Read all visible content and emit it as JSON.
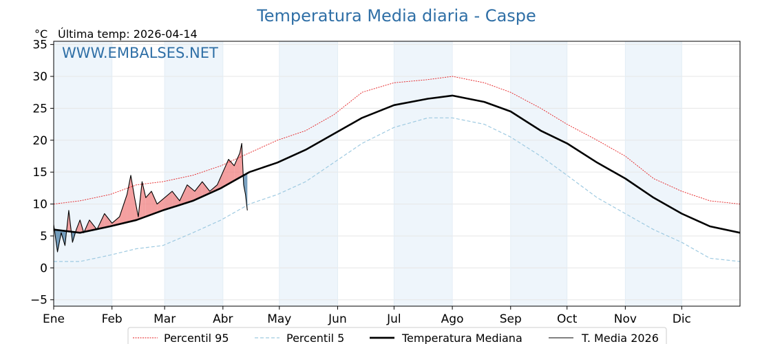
{
  "chart_data": {
    "type": "line",
    "title": "Temperatura Media diaria - Caspe",
    "unit_label": "°C",
    "last_temp_label": "Última temp: 2026-04-14",
    "watermark": "WWW.EMBALSES.NET",
    "ylim": [
      -6,
      35.5
    ],
    "xlim": [
      1,
      366
    ],
    "y_ticks": [
      -5,
      0,
      5,
      10,
      15,
      20,
      25,
      30,
      35
    ],
    "y_tick_labels": [
      "−5",
      "0",
      "5",
      "10",
      "15",
      "20",
      "25",
      "30",
      "35"
    ],
    "months": [
      "Ene",
      "Feb",
      "Mar",
      "Abr",
      "May",
      "Jun",
      "Jul",
      "Ago",
      "Sep",
      "Oct",
      "Nov",
      "Dic"
    ],
    "month_start_days": [
      1,
      32,
      60,
      91,
      121,
      152,
      182,
      213,
      244,
      274,
      305,
      335
    ],
    "grid": true,
    "legend_position": "bottom-center",
    "colors": {
      "p95": "#e41a1c",
      "p5": "#9ecae1",
      "median": "#000000",
      "current": "#000000",
      "above_fill": "#f08080",
      "below_fill": "#4a7fa8",
      "band_shade": "#eef5fb",
      "title": "#2f6fa6"
    },
    "series": [
      {
        "name": "Percentil 95",
        "key": "p95",
        "points": [
          [
            1,
            10.0
          ],
          [
            15,
            10.5
          ],
          [
            31,
            11.5
          ],
          [
            45,
            13.0
          ],
          [
            59,
            13.5
          ],
          [
            75,
            14.5
          ],
          [
            90,
            16.0
          ],
          [
            105,
            18.0
          ],
          [
            120,
            20.0
          ],
          [
            135,
            21.5
          ],
          [
            150,
            24.0
          ],
          [
            165,
            27.5
          ],
          [
            182,
            29.0
          ],
          [
            200,
            29.5
          ],
          [
            213,
            30.0
          ],
          [
            230,
            29.0
          ],
          [
            244,
            27.5
          ],
          [
            260,
            25.0
          ],
          [
            274,
            22.5
          ],
          [
            290,
            20.0
          ],
          [
            305,
            17.5
          ],
          [
            320,
            14.0
          ],
          [
            335,
            12.0
          ],
          [
            350,
            10.5
          ],
          [
            366,
            10.0
          ]
        ]
      },
      {
        "name": "Percentil 5",
        "key": "p5",
        "points": [
          [
            1,
            1.0
          ],
          [
            15,
            1.0
          ],
          [
            31,
            2.0
          ],
          [
            45,
            3.0
          ],
          [
            59,
            3.5
          ],
          [
            75,
            5.5
          ],
          [
            90,
            7.5
          ],
          [
            105,
            10.0
          ],
          [
            120,
            11.5
          ],
          [
            135,
            13.5
          ],
          [
            150,
            16.5
          ],
          [
            165,
            19.5
          ],
          [
            182,
            22.0
          ],
          [
            200,
            23.5
          ],
          [
            213,
            23.5
          ],
          [
            230,
            22.5
          ],
          [
            244,
            20.5
          ],
          [
            260,
            17.5
          ],
          [
            274,
            14.5
          ],
          [
            290,
            11.0
          ],
          [
            305,
            8.5
          ],
          [
            320,
            6.0
          ],
          [
            335,
            4.0
          ],
          [
            350,
            1.5
          ],
          [
            366,
            1.0
          ]
        ]
      },
      {
        "name": "Temperatura Mediana",
        "key": "median",
        "points": [
          [
            1,
            6.0
          ],
          [
            15,
            5.5
          ],
          [
            31,
            6.5
          ],
          [
            45,
            7.5
          ],
          [
            59,
            9.0
          ],
          [
            75,
            10.5
          ],
          [
            90,
            12.5
          ],
          [
            105,
            15.0
          ],
          [
            120,
            16.5
          ],
          [
            135,
            18.5
          ],
          [
            150,
            21.0
          ],
          [
            165,
            23.5
          ],
          [
            182,
            25.5
          ],
          [
            200,
            26.5
          ],
          [
            213,
            27.0
          ],
          [
            230,
            26.0
          ],
          [
            244,
            24.5
          ],
          [
            260,
            21.5
          ],
          [
            274,
            19.5
          ],
          [
            290,
            16.5
          ],
          [
            305,
            14.0
          ],
          [
            320,
            11.0
          ],
          [
            335,
            8.5
          ],
          [
            350,
            6.5
          ],
          [
            366,
            5.5
          ]
        ]
      },
      {
        "name": "T. Media 2026",
        "key": "current",
        "points": [
          [
            1,
            6.8
          ],
          [
            3,
            2.5
          ],
          [
            5,
            5.5
          ],
          [
            7,
            3.5
          ],
          [
            9,
            9.0
          ],
          [
            11,
            4.0
          ],
          [
            13,
            6.0
          ],
          [
            15,
            7.5
          ],
          [
            17,
            5.5
          ],
          [
            20,
            7.5
          ],
          [
            24,
            6.0
          ],
          [
            28,
            8.5
          ],
          [
            32,
            7.0
          ],
          [
            36,
            8.0
          ],
          [
            40,
            11.5
          ],
          [
            42,
            14.5
          ],
          [
            44,
            11.0
          ],
          [
            46,
            8.0
          ],
          [
            48,
            13.5
          ],
          [
            50,
            11.0
          ],
          [
            53,
            12.0
          ],
          [
            56,
            10.0
          ],
          [
            60,
            11.0
          ],
          [
            64,
            12.0
          ],
          [
            68,
            10.5
          ],
          [
            72,
            13.0
          ],
          [
            76,
            12.0
          ],
          [
            80,
            13.5
          ],
          [
            84,
            12.0
          ],
          [
            88,
            13.0
          ],
          [
            91,
            15.0
          ],
          [
            94,
            17.0
          ],
          [
            97,
            16.0
          ],
          [
            100,
            18.0
          ],
          [
            101,
            19.5
          ],
          [
            102,
            13.0
          ],
          [
            103,
            11.5
          ],
          [
            104,
            9.0
          ]
        ]
      }
    ]
  }
}
